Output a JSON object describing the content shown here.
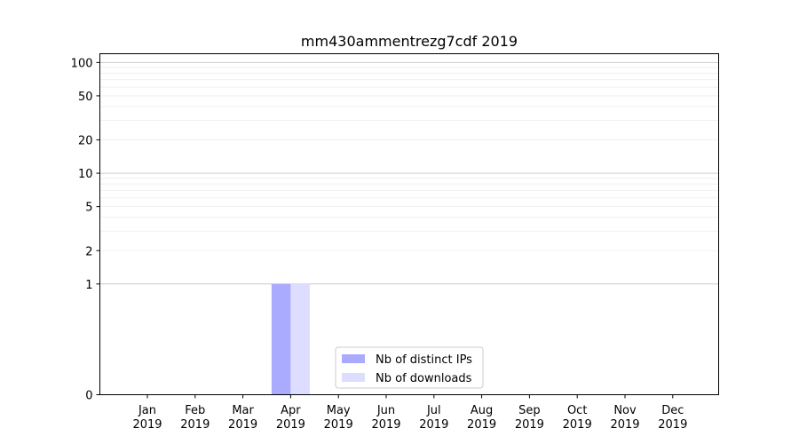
{
  "chart_data": {
    "type": "bar",
    "title": "mm430ammentrezg7cdf 2019",
    "y_scale": "symlog",
    "yticks": [
      0,
      1,
      2,
      5,
      10,
      20,
      50,
      100
    ],
    "ylim": [
      0,
      120
    ],
    "grid": true,
    "legend_position": "lower-center",
    "categories": [
      [
        "Jan",
        "2019"
      ],
      [
        "Feb",
        "2019"
      ],
      [
        "Mar",
        "2019"
      ],
      [
        "Apr",
        "2019"
      ],
      [
        "May",
        "2019"
      ],
      [
        "Jun",
        "2019"
      ],
      [
        "Jul",
        "2019"
      ],
      [
        "Aug",
        "2019"
      ],
      [
        "Sep",
        "2019"
      ],
      [
        "Oct",
        "2019"
      ],
      [
        "Nov",
        "2019"
      ],
      [
        "Dec",
        "2019"
      ]
    ],
    "series": [
      {
        "name": "Nb of distinct IPs",
        "color": "#aaaaff",
        "values": [
          0,
          0,
          0,
          1,
          0,
          0,
          0,
          0,
          0,
          0,
          0,
          0
        ]
      },
      {
        "name": "Nb of downloads",
        "color": "#ddddff",
        "values": [
          0,
          0,
          0,
          1,
          0,
          0,
          0,
          0,
          0,
          0,
          0,
          0
        ]
      }
    ]
  }
}
